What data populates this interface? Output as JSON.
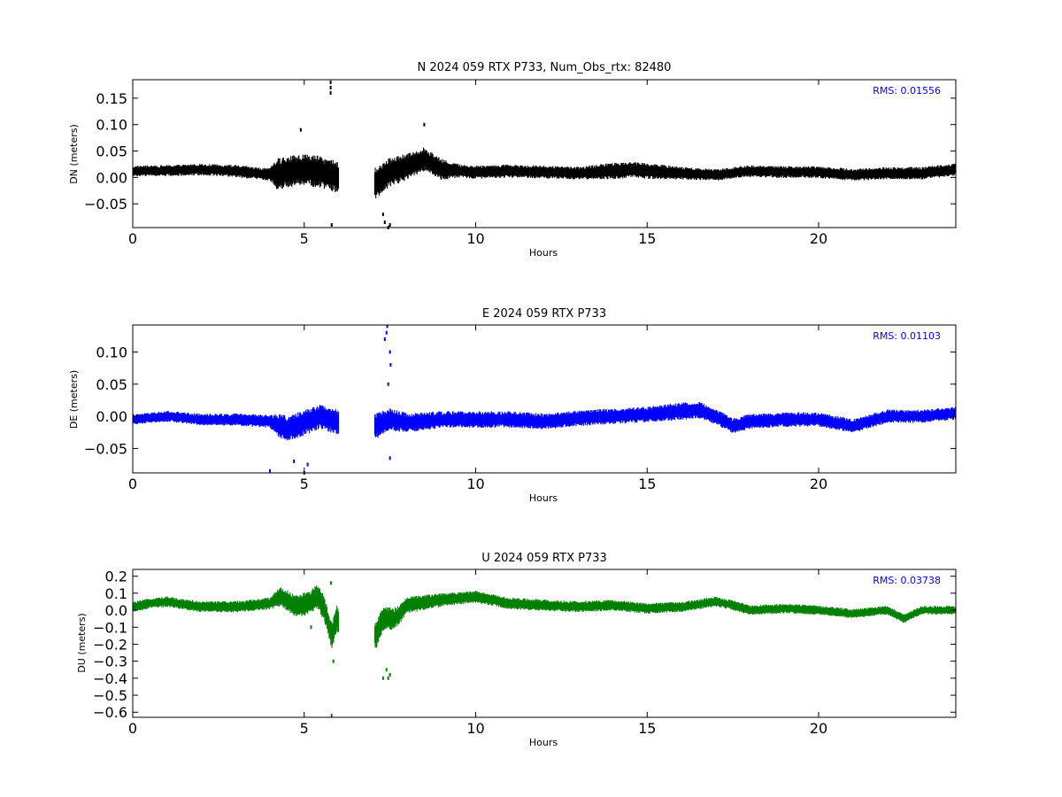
{
  "chart_data": [
    {
      "type": "scatter",
      "title": "N 2024 059 RTX  P733, Num_Obs_rtx: 82480",
      "xlabel": "Hours",
      "ylabel": "DN (meters)",
      "xlim": [
        0,
        24
      ],
      "ylim": [
        -0.095,
        0.185
      ],
      "xticks": [
        0,
        5,
        10,
        15,
        20
      ],
      "xtick_labels": [
        "0",
        "5",
        "10",
        "15",
        "20"
      ],
      "yticks": [
        -0.05,
        0.0,
        0.05,
        0.1,
        0.15
      ],
      "ytick_labels": [
        "−0.05",
        "0.00",
        "0.05",
        "0.10",
        "0.15"
      ],
      "grid": false,
      "color": "#000000",
      "annotation": "RMS:  0.01556",
      "annotation_color": "#0000ff",
      "gaps": [
        [
          6.0,
          7.05
        ]
      ],
      "trend": [
        [
          0,
          0.012
        ],
        [
          1,
          0.013
        ],
        [
          2,
          0.015
        ],
        [
          3,
          0.012
        ],
        [
          4,
          0.005
        ],
        [
          4.5,
          0.01
        ],
        [
          5,
          0.015
        ],
        [
          5.5,
          0.01
        ],
        [
          6,
          0.0
        ],
        [
          7.1,
          -0.01
        ],
        [
          7.5,
          0.01
        ],
        [
          8,
          0.02
        ],
        [
          8.5,
          0.035
        ],
        [
          9,
          0.015
        ],
        [
          10,
          0.01
        ],
        [
          11,
          0.012
        ],
        [
          12,
          0.01
        ],
        [
          13,
          0.008
        ],
        [
          14,
          0.012
        ],
        [
          14.5,
          0.015
        ],
        [
          15,
          0.012
        ],
        [
          16,
          0.008
        ],
        [
          17,
          0.005
        ],
        [
          18,
          0.012
        ],
        [
          19,
          0.01
        ],
        [
          20,
          0.01
        ],
        [
          21,
          0.005
        ],
        [
          22,
          0.008
        ],
        [
          23,
          0.008
        ],
        [
          24,
          0.015
        ]
      ],
      "noise": [
        [
          0,
          0.01
        ],
        [
          4,
          0.012
        ],
        [
          4.2,
          0.03
        ],
        [
          5.9,
          0.03
        ],
        [
          7.1,
          0.03
        ],
        [
          8,
          0.025
        ],
        [
          9,
          0.02
        ],
        [
          9.5,
          0.013
        ],
        [
          13,
          0.012
        ],
        [
          14,
          0.016
        ],
        [
          15,
          0.015
        ],
        [
          16,
          0.012
        ],
        [
          17,
          0.011
        ],
        [
          24,
          0.012
        ]
      ],
      "outliers": [
        [
          5.77,
          0.17
        ],
        [
          5.77,
          0.16
        ],
        [
          5.77,
          0.18
        ],
        [
          7.3,
          -0.07
        ],
        [
          7.35,
          -0.085
        ],
        [
          7.45,
          -0.095
        ],
        [
          7.5,
          -0.09
        ],
        [
          8.5,
          0.1
        ],
        [
          4.9,
          0.09
        ],
        [
          5.8,
          -0.09
        ]
      ]
    },
    {
      "type": "scatter",
      "title": "E 2024 059 RTX  P733",
      "xlabel": "Hours",
      "ylabel": "DE (meters)",
      "xlim": [
        0,
        24
      ],
      "ylim": [
        -0.088,
        0.142
      ],
      "xticks": [
        0,
        5,
        10,
        15,
        20
      ],
      "xtick_labels": [
        "0",
        "5",
        "10",
        "15",
        "20"
      ],
      "yticks": [
        -0.05,
        0.0,
        0.05,
        0.1
      ],
      "ytick_labels": [
        "−0.05",
        "0.00",
        "0.05",
        "0.10"
      ],
      "grid": false,
      "color": "#0000ff",
      "annotation": "RMS:  0.01103",
      "annotation_color": "#0000ff",
      "gaps": [
        [
          6.0,
          7.05
        ]
      ],
      "trend": [
        [
          0,
          -0.005
        ],
        [
          1,
          0.0
        ],
        [
          2,
          -0.005
        ],
        [
          3,
          -0.005
        ],
        [
          4,
          -0.008
        ],
        [
          4.5,
          -0.02
        ],
        [
          5,
          -0.01
        ],
        [
          5.5,
          0.0
        ],
        [
          6,
          -0.01
        ],
        [
          7.1,
          -0.015
        ],
        [
          7.5,
          -0.005
        ],
        [
          8,
          -0.01
        ],
        [
          9,
          -0.005
        ],
        [
          10,
          -0.005
        ],
        [
          11,
          -0.005
        ],
        [
          12,
          -0.008
        ],
        [
          13,
          -0.003
        ],
        [
          14,
          0.0
        ],
        [
          15,
          0.003
        ],
        [
          16,
          0.008
        ],
        [
          16.5,
          0.01
        ],
        [
          17,
          0.0
        ],
        [
          17.5,
          -0.015
        ],
        [
          18,
          -0.008
        ],
        [
          19,
          -0.005
        ],
        [
          20,
          -0.005
        ],
        [
          21,
          -0.015
        ],
        [
          22,
          0.0
        ],
        [
          23,
          0.0
        ],
        [
          24,
          0.005
        ]
      ],
      "noise": [
        [
          0,
          0.008
        ],
        [
          4,
          0.01
        ],
        [
          4.3,
          0.02
        ],
        [
          5.9,
          0.02
        ],
        [
          7.1,
          0.02
        ],
        [
          8,
          0.015
        ],
        [
          9,
          0.013
        ],
        [
          15,
          0.012
        ],
        [
          16,
          0.014
        ],
        [
          17,
          0.012
        ],
        [
          24,
          0.01
        ]
      ],
      "outliers": [
        [
          7.35,
          0.12
        ],
        [
          7.4,
          0.13
        ],
        [
          7.42,
          0.14
        ],
        [
          7.5,
          0.1
        ],
        [
          7.52,
          0.08
        ],
        [
          7.45,
          0.05
        ],
        [
          7.5,
          -0.065
        ],
        [
          4.0,
          -0.085
        ],
        [
          5.0,
          -0.088
        ],
        [
          4.7,
          -0.07
        ],
        [
          5.1,
          -0.075
        ]
      ]
    },
    {
      "type": "scatter",
      "title": "U 2024 059 RTX  P733",
      "xlabel": "Hours",
      "ylabel": "DU (meters)",
      "xlim": [
        0,
        24
      ],
      "ylim": [
        -0.63,
        0.24
      ],
      "xticks": [
        0,
        5,
        10,
        15,
        20
      ],
      "xtick_labels": [
        "0",
        "5",
        "10",
        "15",
        "20"
      ],
      "yticks": [
        -0.6,
        -0.5,
        -0.4,
        -0.3,
        -0.2,
        -0.1,
        0.0,
        0.1,
        0.2
      ],
      "ytick_labels": [
        "−0.6",
        "−0.5",
        "−0.4",
        "−0.3",
        "−0.2",
        "−0.1",
        "0.0",
        "0.1",
        "0.2"
      ],
      "grid": false,
      "color": "#008000",
      "annotation": "RMS:  0.03738",
      "annotation_color": "#0000ff",
      "gaps": [
        [
          6.0,
          7.05
        ]
      ],
      "trend": [
        [
          0,
          0.02
        ],
        [
          0.5,
          0.04
        ],
        [
          1,
          0.05
        ],
        [
          2,
          0.02
        ],
        [
          3,
          0.02
        ],
        [
          3.5,
          0.03
        ],
        [
          4,
          0.04
        ],
        [
          4.3,
          0.08
        ],
        [
          4.8,
          0.02
        ],
        [
          5.2,
          0.05
        ],
        [
          5.4,
          0.08
        ],
        [
          5.6,
          0.0
        ],
        [
          5.8,
          -0.15
        ],
        [
          5.95,
          -0.05
        ],
        [
          7.1,
          -0.15
        ],
        [
          7.3,
          -0.05
        ],
        [
          7.6,
          -0.05
        ],
        [
          7.8,
          -0.02
        ],
        [
          8,
          0.03
        ],
        [
          9,
          0.06
        ],
        [
          10,
          0.08
        ],
        [
          11,
          0.04
        ],
        [
          12,
          0.03
        ],
        [
          13,
          0.02
        ],
        [
          14,
          0.03
        ],
        [
          15,
          0.01
        ],
        [
          16,
          0.02
        ],
        [
          17,
          0.05
        ],
        [
          17.5,
          0.03
        ],
        [
          18,
          0.0
        ],
        [
          19,
          0.01
        ],
        [
          20,
          0.0
        ],
        [
          21,
          -0.02
        ],
        [
          22,
          0.0
        ],
        [
          22.5,
          -0.05
        ],
        [
          23,
          0.0
        ],
        [
          24,
          0.0
        ]
      ],
      "noise": [
        [
          0,
          0.03
        ],
        [
          4,
          0.035
        ],
        [
          4.3,
          0.06
        ],
        [
          5.9,
          0.08
        ],
        [
          7.1,
          0.08
        ],
        [
          8,
          0.05
        ],
        [
          9,
          0.04
        ],
        [
          10,
          0.035
        ],
        [
          24,
          0.025
        ]
      ],
      "outliers": [
        [
          5.8,
          -0.62
        ],
        [
          5.85,
          -0.3
        ],
        [
          5.78,
          0.16
        ],
        [
          7.4,
          -0.35
        ],
        [
          7.45,
          -0.4
        ],
        [
          7.5,
          -0.38
        ],
        [
          7.3,
          -0.4
        ],
        [
          5.2,
          -0.1
        ]
      ]
    }
  ]
}
